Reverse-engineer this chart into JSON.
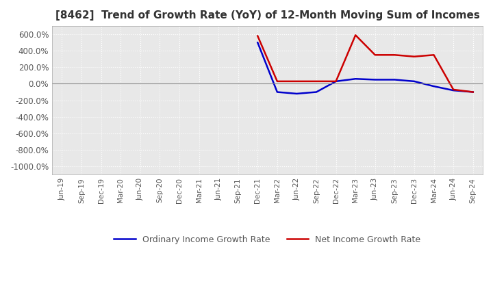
{
  "title": "[8462]  Trend of Growth Rate (YoY) of 12-Month Moving Sum of Incomes",
  "title_fontsize": 11,
  "ylim": [
    -1100,
    700
  ],
  "yticks": [
    600,
    400,
    200,
    0,
    -200,
    -400,
    -600,
    -800,
    -1000
  ],
  "ytick_labels": [
    "600.0%",
    "400.0%",
    "200.0%",
    "0.0%",
    "-200.0%",
    "-400.0%",
    "-600.0%",
    "-800.0%",
    "-1000.0%"
  ],
  "background_color": "#ffffff",
  "plot_background": "#e8e8e8",
  "grid_color": "#ffffff",
  "line_ordinary_color": "#0000cc",
  "line_net_color": "#cc0000",
  "line_width": 1.8,
  "legend_ordinary": "Ordinary Income Growth Rate",
  "legend_net": "Net Income Growth Rate",
  "x_labels": [
    "Jun-19",
    "Sep-19",
    "Dec-19",
    "Mar-20",
    "Jun-20",
    "Sep-20",
    "Dec-20",
    "Mar-21",
    "Jun-21",
    "Sep-21",
    "Dec-21",
    "Mar-22",
    "Jun-22",
    "Sep-22",
    "Dec-22",
    "Mar-23",
    "Jun-23",
    "Sep-23",
    "Dec-23",
    "Mar-24",
    "Jun-24",
    "Sep-24"
  ],
  "ordinary_income_growth": [
    null,
    null,
    null,
    null,
    null,
    null,
    null,
    null,
    null,
    null,
    500,
    -100,
    -120,
    -100,
    30,
    60,
    50,
    50,
    30,
    -30,
    -80,
    -100
  ],
  "net_income_growth": [
    null,
    null,
    null,
    null,
    null,
    null,
    null,
    null,
    null,
    null,
    580,
    30,
    30,
    30,
    30,
    590,
    350,
    350,
    330,
    350,
    -70,
    -100
  ],
  "ordinary_start": [
    -1000
  ],
  "ordinary_start_x": [
    0
  ]
}
